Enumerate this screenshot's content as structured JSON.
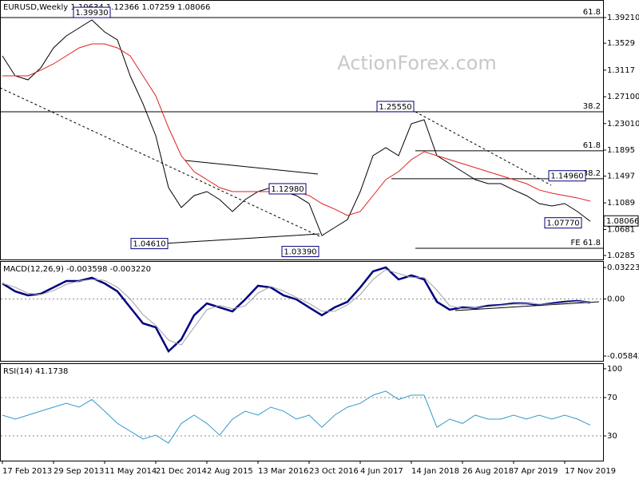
{
  "chart_data": [
    {
      "type": "line",
      "title": "EURUSD,Weekly  1.10634 1.12366 1.07259 1.08066",
      "watermark": "ActionForex.com",
      "categories": [
        "17 Feb 2013",
        null,
        null,
        null,
        "29 Sep 2013",
        null,
        null,
        null,
        "11 May 2014",
        null,
        null,
        null,
        "21 Dec 2014",
        null,
        null,
        null,
        "2 Aug 2015",
        null,
        null,
        null,
        "13 Mar 2016",
        null,
        null,
        null,
        "23 Oct 2016",
        null,
        null,
        null,
        "4 Jun 2017",
        null,
        null,
        null,
        "14 Jan 2018",
        null,
        null,
        null,
        "26 Aug 2018",
        null,
        null,
        null,
        "7 Apr 2019",
        null,
        null,
        null,
        "17 Nov 2019",
        null,
        null
      ],
      "series": [
        {
          "color": "#000000",
          "values": [
            1.3335,
            1.303,
            1.2969,
            1.3152,
            1.3457,
            1.364,
            1.3762,
            1.3884,
            1.3701,
            1.3579,
            1.303,
            1.2603,
            1.2115,
            1.1322,
            1.1017,
            1.12,
            1.1261,
            1.1139,
            1.0956,
            1.1139,
            1.1261,
            1.1322,
            1.1261,
            1.12,
            1.1078,
            1.059,
            1.0712,
            1.0834,
            1.1261,
            1.181,
            1.1932,
            1.181,
            1.2298,
            1.2359,
            1.181,
            1.1688,
            1.1566,
            1.1444,
            1.1383,
            1.1383,
            1.1286,
            1.12,
            1.1078,
            1.1042,
            1.1078,
            1.0956,
            1.08066
          ]
        },
        {
          "color": "#e02020",
          "values": [
            1.303,
            1.303,
            1.303,
            1.3116,
            1.3213,
            1.3335,
            1.3457,
            1.3518,
            1.3518,
            1.3457,
            1.3335,
            1.303,
            1.2725,
            1.2237,
            1.181,
            1.1566,
            1.1444,
            1.1322,
            1.1261,
            1.1261,
            1.1261,
            1.1261,
            1.1261,
            1.1261,
            1.12,
            1.1078,
            1.0993,
            1.0895,
            1.0956,
            1.12,
            1.1444,
            1.1566,
            1.1749,
            1.1871,
            1.181,
            1.1749,
            1.1688,
            1.1627,
            1.1566,
            1.1505,
            1.1444,
            1.1383,
            1.1286,
            1.1237,
            1.12,
            1.1164,
            1.1115
          ]
        }
      ],
      "ylim": [
        1.0224,
        1.4189
      ],
      "yticks": [
        {
          "value": 1.3921,
          "label": "1.39210"
        },
        1.3529,
        1.3117,
        {
          "value": 1.271,
          "label": "1.27100"
        },
        {
          "value": 1.2301,
          "label": "1.23010"
        },
        1.1895,
        1.1497,
        1.1089,
        1.0681,
        1.0285
      ],
      "last_price": 1.08066,
      "levels": [
        {
          "value": 1.3921,
          "label": "61.8"
        },
        {
          "value": 1.2481,
          "label": "38.2"
        },
        {
          "value": 1.1884,
          "label": "61.8"
        },
        {
          "value": 1.1457,
          "label": "38.2"
        },
        {
          "value": 1.0395,
          "label": "FE 61.8"
        }
      ],
      "price_labels": [
        {
          "value": 1.3993,
          "label": "1.39930"
        },
        {
          "value": 1.2555,
          "label": "1.25550"
        },
        {
          "value": 1.1496,
          "label": "1.14960"
        },
        {
          "value": 1.0777,
          "label": "1.07770"
        },
        {
          "value": 1.0461,
          "label": "1.04610"
        },
        {
          "value": 1.0339,
          "label": "1.03390"
        },
        {
          "value": 1.1298,
          "label": "1.12980"
        }
      ]
    },
    {
      "type": "line",
      "title": "MACD(12,26,9) -0.003598 -0.003220",
      "series": [
        {
          "color": "#000080",
          "values": [
            0.0159,
            0.0078,
            0.0037,
            0.0053,
            0.0118,
            0.0184,
            0.0184,
            0.0217,
            0.0159,
            0.0078,
            -0.0086,
            -0.0249,
            -0.029,
            -0.0535,
            -0.0413,
            -0.0167,
            -0.0045,
            -0.0086,
            -0.0127,
            -0.0004,
            0.0135,
            0.0118,
            0.0037,
            -0.0004,
            -0.0086,
            -0.0167,
            -0.0086,
            -0.0029,
            0.0118,
            0.0282,
            0.0323,
            0.02,
            0.0241,
            0.02,
            -0.0029,
            -0.011,
            -0.0086,
            -0.0094,
            -0.0069,
            -0.0061,
            -0.0045,
            -0.0045,
            -0.0061,
            -0.0045,
            -0.0029,
            -0.002,
            -0.003598
          ]
        },
        {
          "color": "#a0a0a0",
          "values": [
            0.0159,
            0.012,
            0.0058,
            0.0045,
            0.0085,
            0.015,
            0.0184,
            0.02,
            0.019,
            0.012,
            0.0,
            -0.016,
            -0.027,
            -0.042,
            -0.047,
            -0.029,
            -0.011,
            -0.0065,
            -0.01,
            -0.007,
            0.006,
            0.0127,
            0.008,
            0.0017,
            -0.0045,
            -0.0126,
            -0.0126,
            -0.006,
            0.0045,
            0.02,
            0.03,
            0.026,
            0.022,
            0.022,
            0.009,
            -0.007,
            -0.0098,
            -0.009,
            -0.008,
            -0.0065,
            -0.0053,
            -0.0045,
            -0.0053,
            -0.0053,
            -0.0037,
            -0.0025,
            -0.00322
          ]
        }
      ],
      "ylim": [
        -0.0633,
        0.0388
      ],
      "yticks": [
        0.032235,
        {
          "value": 0,
          "label": "0.00"
        },
        -0.058434
      ]
    },
    {
      "type": "line",
      "title": "RSI(14) 41.1738",
      "series": [
        {
          "color": "#3399cc",
          "values": [
            51.7,
            47.5,
            51.7,
            55.8,
            60,
            64,
            60,
            68,
            55.8,
            43,
            35,
            26.7,
            30.8,
            22.5,
            43,
            51.7,
            43,
            30.8,
            47.5,
            55.8,
            51.7,
            60,
            55.8,
            47.5,
            51.7,
            39,
            51.7,
            60,
            64,
            72.5,
            76.7,
            68,
            72.5,
            72.5,
            39,
            47.5,
            43,
            51.7,
            47.5,
            47.5,
            51.7,
            47.5,
            51.7,
            47.5,
            51.7,
            47.5,
            41.1738
          ]
        }
      ],
      "ylim": [
        4.2,
        105.8
      ],
      "yticks": [
        30,
        70,
        100
      ]
    }
  ]
}
